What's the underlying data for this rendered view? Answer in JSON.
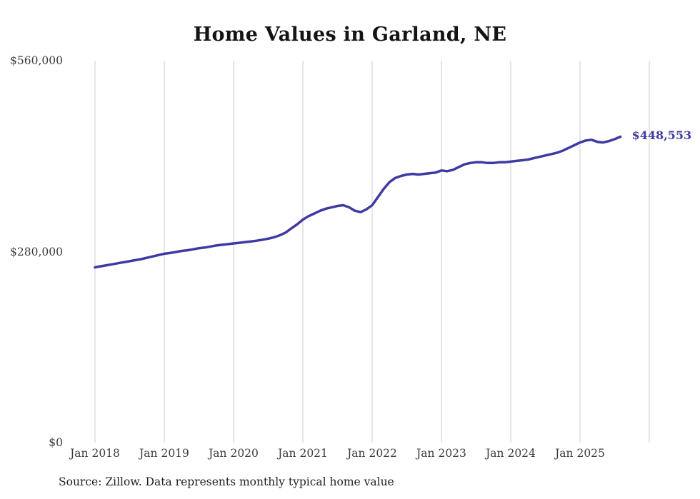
{
  "title": "Home Values in Garland, NE",
  "source_note": "Source: Zillow. Data represents monthly typical home value",
  "colors": {
    "line": "#3f3aa3",
    "grid": "#cccccc",
    "title_text": "#141414",
    "axis_text": "#3c3c3c"
  },
  "chart_data": {
    "type": "line",
    "title": "Home Values in Garland, NE",
    "xlabel": "",
    "ylabel": "",
    "ylim": [
      0,
      560000
    ],
    "grid": "vertical-yearly",
    "legend": "none",
    "end_annotation": "$448,553",
    "end_value": 448553,
    "y_ticks": [
      {
        "label": "$0",
        "value": 0
      },
      {
        "label": "$280,000",
        "value": 280000
      },
      {
        "label": "$560,000",
        "value": 560000
      }
    ],
    "x_ticks": [
      {
        "label": "Jan 2018",
        "year": 2018
      },
      {
        "label": "Jan 2019",
        "year": 2019
      },
      {
        "label": "Jan 2020",
        "year": 2020
      },
      {
        "label": "Jan 2021",
        "year": 2021
      },
      {
        "label": "Jan 2022",
        "year": 2022
      },
      {
        "label": "Jan 2023",
        "year": 2023
      },
      {
        "label": "Jan 2024",
        "year": 2024
      },
      {
        "label": "Jan 2025",
        "year": 2025
      }
    ],
    "grid_years": [
      2018,
      2019,
      2020,
      2021,
      2022,
      2023,
      2024,
      2025,
      2026
    ],
    "x": [
      "2018-01",
      "2018-02",
      "2018-03",
      "2018-04",
      "2018-05",
      "2018-06",
      "2018-07",
      "2018-08",
      "2018-09",
      "2018-10",
      "2018-11",
      "2018-12",
      "2019-01",
      "2019-02",
      "2019-03",
      "2019-04",
      "2019-05",
      "2019-06",
      "2019-07",
      "2019-08",
      "2019-09",
      "2019-10",
      "2019-11",
      "2019-12",
      "2020-01",
      "2020-02",
      "2020-03",
      "2020-04",
      "2020-05",
      "2020-06",
      "2020-07",
      "2020-08",
      "2020-09",
      "2020-10",
      "2020-11",
      "2020-12",
      "2021-01",
      "2021-02",
      "2021-03",
      "2021-04",
      "2021-05",
      "2021-06",
      "2021-07",
      "2021-08",
      "2021-09",
      "2021-10",
      "2021-11",
      "2021-12",
      "2022-01",
      "2022-02",
      "2022-03",
      "2022-04",
      "2022-05",
      "2022-06",
      "2022-07",
      "2022-08",
      "2022-09",
      "2022-10",
      "2022-11",
      "2022-12",
      "2023-01",
      "2023-02",
      "2023-03",
      "2023-04",
      "2023-05",
      "2023-06",
      "2023-07",
      "2023-08",
      "2023-09",
      "2023-10",
      "2023-11",
      "2023-12",
      "2024-01",
      "2024-02",
      "2024-03",
      "2024-04",
      "2024-05",
      "2024-06",
      "2024-07",
      "2024-08",
      "2024-09",
      "2024-10",
      "2024-11",
      "2024-12",
      "2025-01",
      "2025-02",
      "2025-03",
      "2025-04",
      "2025-05",
      "2025-06",
      "2025-07",
      "2025-08"
    ],
    "values": [
      257000,
      258500,
      260000,
      261500,
      263000,
      264500,
      266000,
      267500,
      269000,
      271000,
      273000,
      275000,
      277000,
      278000,
      279500,
      281000,
      282000,
      283500,
      285000,
      286000,
      287500,
      289000,
      290000,
      291000,
      292000,
      293000,
      294000,
      295000,
      296000,
      297500,
      299000,
      301000,
      304000,
      308000,
      314000,
      320000,
      327000,
      332000,
      336000,
      340000,
      343000,
      345000,
      347000,
      348000,
      345000,
      340000,
      338000,
      342000,
      348000,
      360000,
      372000,
      382000,
      388000,
      391000,
      393000,
      394000,
      393000,
      394000,
      395000,
      396000,
      399000,
      398000,
      400000,
      404000,
      408000,
      410000,
      411000,
      411000,
      410000,
      410000,
      411000,
      411000,
      412000,
      413000,
      414000,
      415000,
      417000,
      419000,
      421000,
      423000,
      425000,
      428000,
      432000,
      436000,
      440000,
      443000,
      444000,
      441000,
      440000,
      442000,
      445000,
      448553
    ]
  }
}
